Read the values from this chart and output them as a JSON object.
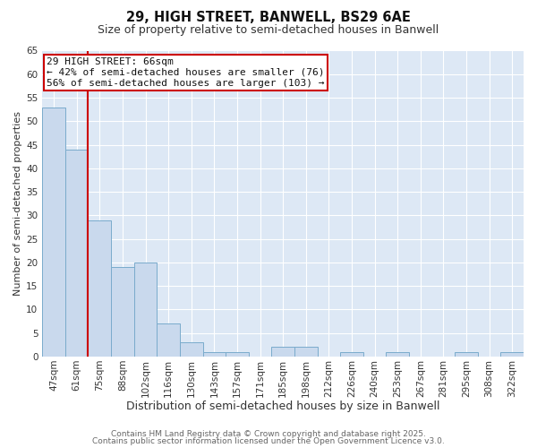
{
  "title1": "29, HIGH STREET, BANWELL, BS29 6AE",
  "title2": "Size of property relative to semi-detached houses in Banwell",
  "xlabel": "Distribution of semi-detached houses by size in Banwell",
  "ylabel": "Number of semi-detached properties",
  "bar_labels": [
    "47sqm",
    "61sqm",
    "75sqm",
    "88sqm",
    "102sqm",
    "116sqm",
    "130sqm",
    "143sqm",
    "157sqm",
    "171sqm",
    "185sqm",
    "198sqm",
    "212sqm",
    "226sqm",
    "240sqm",
    "253sqm",
    "267sqm",
    "281sqm",
    "295sqm",
    "308sqm",
    "322sqm"
  ],
  "bar_values": [
    53,
    44,
    29,
    19,
    20,
    7,
    3,
    1,
    1,
    0,
    2,
    2,
    0,
    1,
    0,
    1,
    0,
    0,
    1,
    0,
    1
  ],
  "bar_color": "#c9d9ed",
  "bar_edge_color": "#7aabcc",
  "vline_color": "#cc0000",
  "annotation_title": "29 HIGH STREET: 66sqm",
  "annotation_line1": "← 42% of semi-detached houses are smaller (76)",
  "annotation_line2": "56% of semi-detached houses are larger (103) →",
  "annotation_box_color": "#cc0000",
  "ylim": [
    0,
    65
  ],
  "bg_color": "#dde8f5",
  "grid_color": "#ffffff",
  "fig_bg_color": "#ffffff",
  "footer1": "Contains HM Land Registry data © Crown copyright and database right 2025.",
  "footer2": "Contains public sector information licensed under the Open Government Licence v3.0.",
  "title1_fontsize": 10.5,
  "title2_fontsize": 9,
  "xlabel_fontsize": 9,
  "ylabel_fontsize": 8,
  "tick_fontsize": 7.5,
  "annotation_fontsize": 8,
  "footer_fontsize": 6.5
}
